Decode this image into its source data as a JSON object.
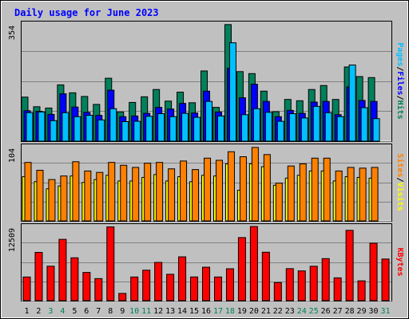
{
  "title": "Daily usage for June 2023",
  "colors": {
    "background": "#c0c0c0",
    "title": "#0000ff",
    "hits": "#00805c",
    "files": "#0000ff",
    "pages": "#00c0ff",
    "visits": "#ffff00",
    "sites": "#ff8000",
    "kbytes": "#ff0000",
    "weekend_label": "#00805c",
    "weekday_label": "#000000"
  },
  "chart_data": [
    {
      "type": "bar",
      "name": "pages-files-hits",
      "categories": [
        "1",
        "2",
        "3",
        "4",
        "5",
        "6",
        "7",
        "8",
        "9",
        "10",
        "11",
        "12",
        "13",
        "14",
        "15",
        "16",
        "17",
        "18",
        "19",
        "20",
        "21",
        "22",
        "23",
        "24",
        "25",
        "26",
        "27",
        "28",
        "29",
        "30",
        "31"
      ],
      "y_max_label": "354",
      "ylim": [
        0,
        354
      ],
      "series": [
        {
          "name": "Hits",
          "values": [
            133,
            104,
            100,
            170,
            146,
            135,
            111,
            190,
            88,
            117,
            134,
            156,
            121,
            148,
            116,
            212,
            102,
            352,
            210,
            204,
            151,
            89,
            126,
            122,
            156,
            168,
            126,
            224,
            195,
            192,
            0
          ]
        },
        {
          "name": "Files",
          "values": [
            92,
            90,
            81,
            143,
            103,
            87,
            78,
            154,
            74,
            76,
            84,
            102,
            97,
            114,
            85,
            151,
            88,
            220,
            131,
            172,
            120,
            74,
            93,
            84,
            118,
            120,
            80,
            164,
            123,
            120,
            0
          ]
        },
        {
          "name": "Pages",
          "values": [
            86,
            88,
            62,
            86,
            74,
            78,
            64,
            98,
            59,
            60,
            75,
            83,
            74,
            84,
            72,
            120,
            76,
            297,
            80,
            98,
            87,
            60,
            83,
            70,
            105,
            86,
            74,
            230,
            101,
            68,
            0
          ]
        }
      ],
      "legend": [
        "Pages",
        "Files",
        "Hits"
      ]
    },
    {
      "type": "bar",
      "name": "visits-sites",
      "categories": [
        "1",
        "2",
        "3",
        "4",
        "5",
        "6",
        "7",
        "8",
        "9",
        "10",
        "11",
        "12",
        "13",
        "14",
        "15",
        "16",
        "17",
        "18",
        "19",
        "20",
        "21",
        "22",
        "23",
        "24",
        "25",
        "26",
        "27",
        "28",
        "29",
        "30",
        "31"
      ],
      "y_max_label": "104",
      "ylim": [
        0,
        104
      ],
      "series": [
        {
          "name": "Sites",
          "values": [
            82,
            71,
            58,
            63,
            83,
            70,
            68,
            82,
            78,
            75,
            81,
            82,
            73,
            84,
            72,
            88,
            85,
            97,
            90,
            103,
            93,
            53,
            77,
            80,
            88,
            88,
            70,
            75,
            74,
            75,
            0
          ]
        },
        {
          "name": "Visits",
          "values": [
            62,
            55,
            45,
            49,
            63,
            54,
            58,
            64,
            56,
            56,
            61,
            65,
            56,
            62,
            55,
            64,
            63,
            80,
            43,
            80,
            76,
            50,
            60,
            64,
            70,
            70,
            56,
            62,
            61,
            60,
            0
          ]
        }
      ],
      "legend": [
        "Sites",
        "Visits"
      ]
    },
    {
      "type": "bar",
      "name": "kbytes",
      "categories": [
        "1",
        "2",
        "3",
        "4",
        "5",
        "6",
        "7",
        "8",
        "9",
        "10",
        "11",
        "12",
        "13",
        "14",
        "15",
        "16",
        "17",
        "18",
        "19",
        "20",
        "21",
        "22",
        "23",
        "24",
        "25",
        "26",
        "27",
        "28",
        "29",
        "30",
        "31"
      ],
      "y_max_label": "12509",
      "ylim": [
        0,
        12509
      ],
      "series": [
        {
          "name": "KBytes",
          "values": [
            3990,
            8140,
            5810,
            10340,
            7230,
            4760,
            3720,
            12440,
            1220,
            3990,
            5140,
            6450,
            4450,
            7390,
            4000,
            5640,
            3990,
            5380,
            10640,
            12509,
            8170,
            3050,
            5400,
            5020,
            5800,
            7090,
            3850,
            11860,
            3340,
            9690,
            7020
          ]
        }
      ],
      "legend": [
        "KBytes"
      ]
    }
  ],
  "weekend_days": [
    3,
    4,
    10,
    11,
    17,
    18,
    24,
    25,
    31
  ]
}
